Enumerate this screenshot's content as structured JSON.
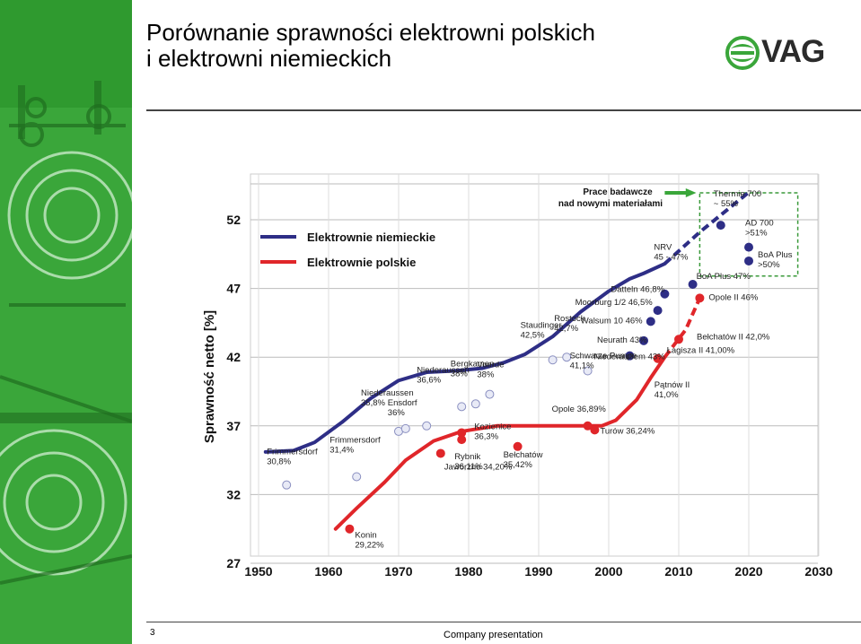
{
  "title": {
    "line1": "Porównanie sprawności elektrowni polskich",
    "line2": "i elektrowni niemieckich"
  },
  "logo": {
    "text": "VAG",
    "icon": "vag-swirl-logo"
  },
  "footer": {
    "page": "3",
    "text": "Company presentation"
  },
  "colors": {
    "sidebar": "#3aa63a",
    "german": "#2e2e86",
    "polish": "#e0262a",
    "grid_border": "#3a9a3a"
  },
  "chart_data": {
    "type": "line",
    "title": "",
    "xlabel": "",
    "ylabel": "Sprawność netto [%]",
    "xlim": [
      1950,
      2030
    ],
    "ylim": [
      27,
      52
    ],
    "xticks": [
      "1950",
      "1960",
      "1970",
      "1980",
      "1990",
      "2000",
      "2010",
      "2020",
      "2030"
    ],
    "yticks": [
      "52",
      "47",
      "42",
      "37",
      "32",
      "27"
    ],
    "grid": true,
    "legend_position": "top-left",
    "research_box_label": [
      "Prace badawcze",
      "nad nowymi materiałami"
    ],
    "series": [
      {
        "name": "Elektrownie niemieckie",
        "color": "#2e2e86",
        "trend": [
          [
            1951,
            35.1
          ],
          [
            1955,
            35.2
          ],
          [
            1958,
            35.8
          ],
          [
            1962,
            37.3
          ],
          [
            1966,
            39.0
          ],
          [
            1970,
            40.3
          ],
          [
            1974,
            40.9
          ],
          [
            1978,
            41.0
          ],
          [
            1982,
            41.2
          ],
          [
            1985,
            41.6
          ],
          [
            1988,
            42.2
          ],
          [
            1992,
            43.5
          ],
          [
            1996,
            45.3
          ],
          [
            2000,
            46.8
          ],
          [
            2003,
            47.7
          ],
          [
            2005,
            48.1
          ],
          [
            2008,
            48.8
          ]
        ],
        "trend_projected": [
          [
            2008,
            48.8
          ],
          [
            2013,
            51.1
          ],
          [
            2020,
            54.0
          ]
        ],
        "points": [
          {
            "x": 1954,
            "y": 32.7,
            "label": [
              "Frimmersdorf",
              "30,8%"
            ],
            "hollow": true
          },
          {
            "x": 1964,
            "y": 33.3,
            "label": [
              "Frimmersdorf",
              "31,4%"
            ],
            "hollow": true
          },
          {
            "x": 1970,
            "y": 36.6,
            "label": [
              "Niederaussen",
              "35,8%"
            ],
            "hollow": true
          },
          {
            "x": 1971,
            "y": 36.8,
            "label": [
              "Ensdorf",
              "36%"
            ],
            "hollow": true
          },
          {
            "x": 1974,
            "y": 37.0,
            "label": [],
            "hollow": true
          },
          {
            "x": 1979,
            "y": 38.4,
            "label": [
              "Niederaussen",
              "36,6%"
            ],
            "hollow": true
          },
          {
            "x": 1981,
            "y": 38.6,
            "label": [
              "Bergkamen",
              "38%"
            ],
            "hollow": true
          },
          {
            "x": 1983,
            "y": 39.3,
            "label": [
              "Voerde",
              "38%"
            ],
            "hollow": true
          },
          {
            "x": 1992,
            "y": 41.8,
            "label": [
              "Staudinger",
              "42,5%"
            ],
            "hollow": true
          },
          {
            "x": 1994,
            "y": 42.0,
            "label": [
              "Rostock",
              "42,7%"
            ],
            "hollow": true
          },
          {
            "x": 1997,
            "y": 41.0,
            "label": [
              "Schwarze Pumpe",
              "41,1%"
            ],
            "hollow": true
          },
          {
            "x": 2003,
            "y": 42.1,
            "label": [
              "Niederaußem 43%"
            ],
            "hollow": false
          },
          {
            "x": 2005,
            "y": 43.2,
            "label": [
              "Neurath 43%"
            ],
            "hollow": false
          },
          {
            "x": 2006,
            "y": 44.6,
            "label": [
              "Walsum 10 46%"
            ],
            "hollow": false
          },
          {
            "x": 2007,
            "y": 45.4,
            "label": [
              "Moorburg 1/2 46,5%"
            ],
            "hollow": false
          },
          {
            "x": 2008,
            "y": 46.6,
            "label": [
              "Datteln 46,8%"
            ],
            "hollow": false
          },
          {
            "x": 2012,
            "y": 47.3,
            "label": [
              "BoA Plus 47%"
            ],
            "hollow": false
          },
          {
            "x": 2016,
            "y": 51.6,
            "label": [
              "Thermie 700",
              "~ 55%"
            ],
            "hollow": false
          },
          {
            "x": 2020,
            "y": 50.0,
            "label": [
              "AD 700",
              ">51%"
            ],
            "hollow": false
          },
          {
            "x": 2020,
            "y": 49.0,
            "label": [
              "BoA Plus",
              ">50%"
            ],
            "hollow": false
          }
        ],
        "free_labels": [
          [
            "NRV",
            "45 - 47%"
          ]
        ]
      },
      {
        "name": "Elektrownie polskie",
        "color": "#e0262a",
        "trend": [
          [
            1961,
            29.5
          ],
          [
            1964,
            31.0
          ],
          [
            1968,
            32.9
          ],
          [
            1971,
            34.5
          ],
          [
            1975,
            35.9
          ],
          [
            1979,
            36.6
          ],
          [
            1984,
            37.0
          ],
          [
            1990,
            37.0
          ],
          [
            1996,
            37.0
          ],
          [
            1999,
            37.0
          ],
          [
            2001,
            37.4
          ],
          [
            2004,
            38.9
          ],
          [
            2006,
            40.5
          ],
          [
            2008,
            42.0
          ]
        ],
        "trend_projected": [
          [
            2008,
            42.0
          ],
          [
            2011,
            44.0
          ],
          [
            2013,
            46.3
          ]
        ],
        "points": [
          {
            "x": 1963,
            "y": 29.5,
            "label": [
              "Konin",
              "29,22%"
            ]
          },
          {
            "x": 1976,
            "y": 35.0,
            "label": [
              "Jaworzno 34,20%"
            ]
          },
          {
            "x": 1979,
            "y": 36.5,
            "label": [
              "Kozienice",
              "36,3%"
            ]
          },
          {
            "x": 1979,
            "y": 36.0,
            "label": [
              "Rybnik",
              "36,11%"
            ]
          },
          {
            "x": 1987,
            "y": 35.5,
            "label": [
              "Bełchatów",
              "35,42%"
            ]
          },
          {
            "x": 1997,
            "y": 37.0,
            "label": [
              "Opole 36,89%"
            ]
          },
          {
            "x": 1998,
            "y": 36.7,
            "label": [
              "Turów 36,24%"
            ]
          },
          {
            "x": 2007,
            "y": 41.9,
            "label": [
              "Łagisza II 41,00%"
            ]
          },
          {
            "x": 2010,
            "y": 43.3,
            "label": [
              "Bełchatów II 42,0%"
            ]
          },
          {
            "x": 2013,
            "y": 46.3,
            "label": [
              "Opole II 46%"
            ]
          }
        ],
        "free_labels": [
          [
            "Pątnów II",
            "41,0%"
          ]
        ]
      }
    ]
  }
}
